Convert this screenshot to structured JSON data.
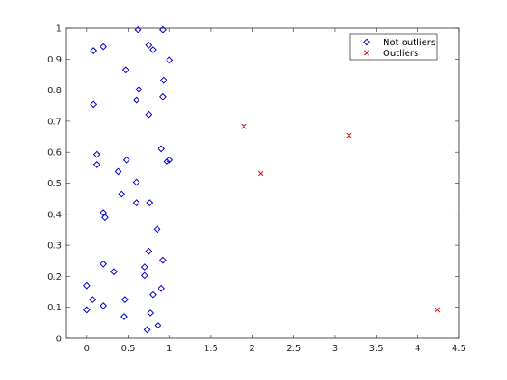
{
  "chart_data": {
    "type": "scatter",
    "title": "",
    "xlabel": "",
    "ylabel": "",
    "xlim": [
      -0.25,
      4.5
    ],
    "ylim": [
      0,
      1
    ],
    "xticks": [
      "0",
      "0.5",
      "1",
      "1.5",
      "2",
      "2.5",
      "3",
      "3.5",
      "4",
      "4.5"
    ],
    "yticks": [
      "0",
      "0.1",
      "0.2",
      "0.3",
      "0.4",
      "0.5",
      "0.6",
      "0.7",
      "0.8",
      "0.9",
      "1"
    ],
    "grid": false,
    "legend_position": "top-right",
    "series": [
      {
        "name": "Not outliers",
        "marker": "diamond",
        "color": "#0000cc",
        "x": [
          0.62,
          0.92,
          0.75,
          0.8,
          0.08,
          0.2,
          0.47,
          1.0,
          0.93,
          0.63,
          0.6,
          0.92,
          0.08,
          0.75,
          0.12,
          0.9,
          0.12,
          0.48,
          0.97,
          0.38,
          1.0,
          0.6,
          0.42,
          0.2,
          0.6,
          0.76,
          0.22,
          0.85,
          0.75,
          0.2,
          0.92,
          0.7,
          0.33,
          0.7,
          0.0,
          0.9,
          0.8,
          0.07,
          0.46,
          0.2,
          0.0,
          0.77,
          0.45,
          0.86,
          0.73
        ],
        "y": [
          0.995,
          0.995,
          0.945,
          0.93,
          0.927,
          0.94,
          0.865,
          0.897,
          0.832,
          0.802,
          0.768,
          0.779,
          0.754,
          0.721,
          0.593,
          0.611,
          0.56,
          0.575,
          0.57,
          0.538,
          0.575,
          0.503,
          0.465,
          0.405,
          0.437,
          0.437,
          0.39,
          0.352,
          0.281,
          0.24,
          0.252,
          0.23,
          0.215,
          0.203,
          0.17,
          0.161,
          0.141,
          0.125,
          0.125,
          0.105,
          0.092,
          0.082,
          0.07,
          0.042,
          0.028
        ]
      },
      {
        "name": "Outliers",
        "marker": "x",
        "color": "#dd0000",
        "x": [
          1.9,
          2.1,
          3.17,
          4.24
        ],
        "y": [
          0.683,
          0.532,
          0.654,
          0.092
        ]
      }
    ]
  }
}
